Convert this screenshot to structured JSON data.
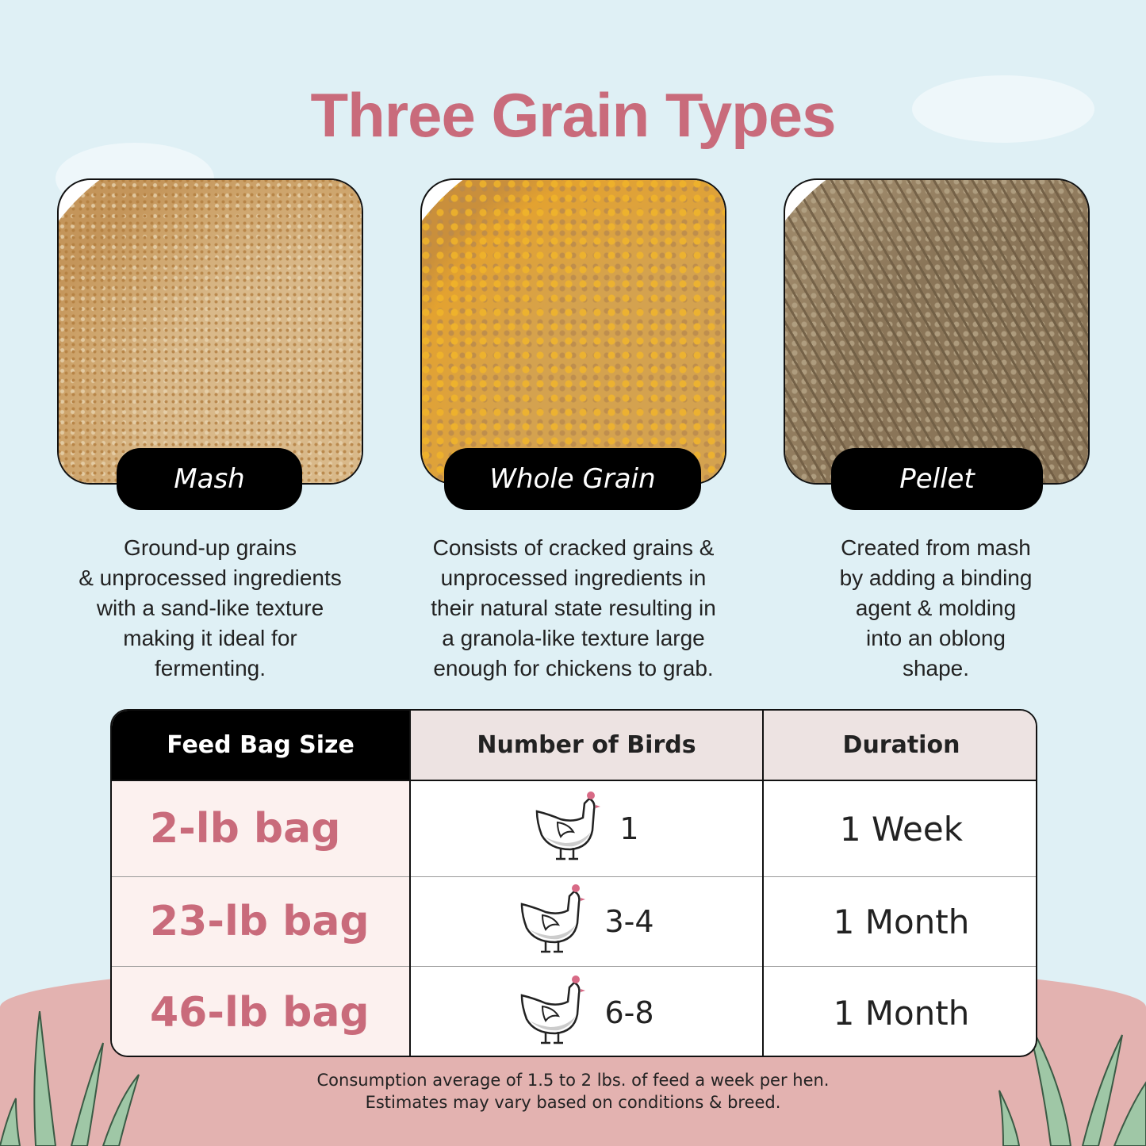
{
  "title": "Three Grain Types",
  "grain_types": [
    {
      "label": "Mash",
      "description": [
        "Ground-up grains",
        "& unprocessed ingredients",
        "with a sand-like texture",
        "making it ideal for",
        "fermenting."
      ]
    },
    {
      "label": "Whole Grain",
      "description": [
        "Consists of cracked grains &",
        "unprocessed ingredients in",
        "their natural state resulting in",
        "a granola-like texture large",
        "enough for chickens to grab."
      ]
    },
    {
      "label": "Pellet",
      "description": [
        "Created from mash",
        "by adding a binding",
        "agent & molding",
        "into an oblong",
        "shape."
      ]
    }
  ],
  "table": {
    "headers": [
      "Feed Bag Size",
      "Number of Birds",
      "Duration"
    ],
    "rows": [
      {
        "size": "2-lb bag",
        "birds": "1",
        "duration": "1 Week",
        "icon": "chicken-icon"
      },
      {
        "size": "23-lb bag",
        "birds": "3-4",
        "duration": "1 Month",
        "icon": "chicken-icon"
      },
      {
        "size": "46-lb bag",
        "birds": "6-8",
        "duration": "1 Month",
        "icon": "chicken-icon"
      }
    ]
  },
  "footnote": [
    "Consumption average of 1.5 to 2 lbs. of feed a week per hen.",
    "Estimates may vary based on conditions & breed."
  ],
  "colors": {
    "accent": "#c96b7b",
    "sky": "#dff0f5",
    "ground": "#e3b2b0",
    "header_light": "#ede3e2",
    "bag_cell": "#fcf1ef"
  }
}
